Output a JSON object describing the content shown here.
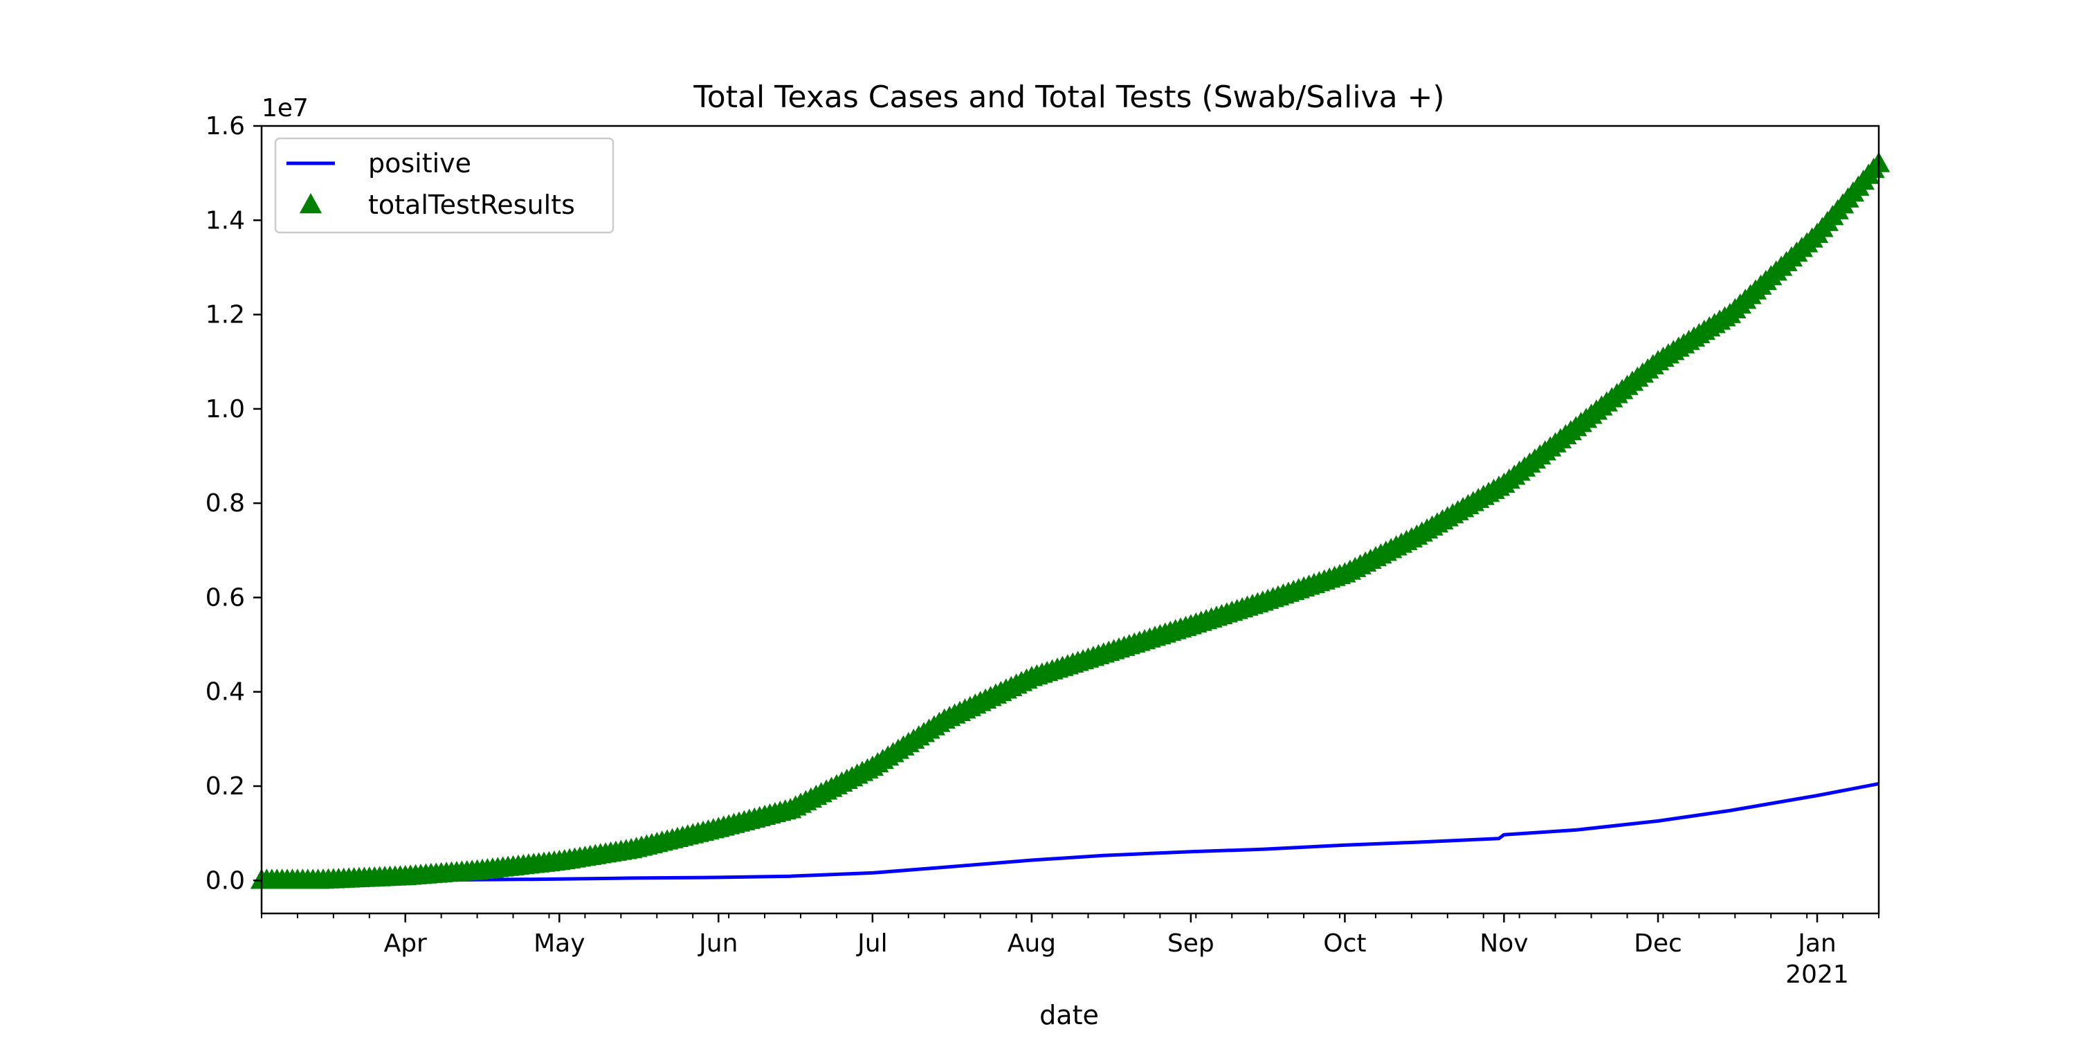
{
  "chart_data": {
    "type": "line",
    "title": "Total Texas Cases and Total Tests (Swab/Saliva +)",
    "xlabel": "date",
    "ylabel": "",
    "y_offset_label": "1e7",
    "xlim": [
      "2020-03-04",
      "2021-01-13"
    ],
    "ylim": [
      -0.07,
      1.6
    ],
    "y_ticks": [
      {
        "value": 0.0,
        "label": "0.0"
      },
      {
        "value": 0.2,
        "label": "0.2"
      },
      {
        "value": 0.4,
        "label": "0.4"
      },
      {
        "value": 0.6,
        "label": "0.6"
      },
      {
        "value": 0.8,
        "label": "0.8"
      },
      {
        "value": 1.0,
        "label": "1.0"
      },
      {
        "value": 1.2,
        "label": "1.2"
      },
      {
        "value": 1.4,
        "label": "1.4"
      },
      {
        "value": 1.6,
        "label": "1.6"
      }
    ],
    "x_ticks": [
      {
        "date": "2020-04-01",
        "label": "Apr"
      },
      {
        "date": "2020-05-01",
        "label": "May"
      },
      {
        "date": "2020-06-01",
        "label": "Jun"
      },
      {
        "date": "2020-07-01",
        "label": "Jul"
      },
      {
        "date": "2020-08-01",
        "label": "Aug"
      },
      {
        "date": "2020-09-01",
        "label": "Sep"
      },
      {
        "date": "2020-10-01",
        "label": "Oct"
      },
      {
        "date": "2020-11-01",
        "label": "Nov"
      },
      {
        "date": "2020-12-01",
        "label": "Dec"
      },
      {
        "date": "2021-01-01",
        "label": "Jan",
        "sublabel": "2021"
      }
    ],
    "grid": false,
    "legend_position": "top-left",
    "series": [
      {
        "name": "positive",
        "style": "line",
        "color": "#0000ff",
        "points": [
          [
            "2020-03-04",
            0.0
          ],
          [
            "2020-03-15",
            0.0001
          ],
          [
            "2020-04-01",
            0.0004
          ],
          [
            "2020-04-15",
            0.0015
          ],
          [
            "2020-05-01",
            0.003
          ],
          [
            "2020-05-15",
            0.005
          ],
          [
            "2020-06-01",
            0.0065
          ],
          [
            "2020-06-15",
            0.009
          ],
          [
            "2020-07-01",
            0.016
          ],
          [
            "2020-07-15",
            0.028
          ],
          [
            "2020-08-01",
            0.043
          ],
          [
            "2020-08-15",
            0.053
          ],
          [
            "2020-09-01",
            0.061
          ],
          [
            "2020-09-15",
            0.066
          ],
          [
            "2020-10-01",
            0.075
          ],
          [
            "2020-10-15",
            0.081
          ],
          [
            "2020-10-31",
            0.089
          ],
          [
            "2020-11-01",
            0.097
          ],
          [
            "2020-11-15",
            0.107
          ],
          [
            "2020-12-01",
            0.126
          ],
          [
            "2020-12-15",
            0.148
          ],
          [
            "2021-01-01",
            0.18
          ],
          [
            "2021-01-13",
            0.205
          ]
        ]
      },
      {
        "name": "totalTestResults",
        "style": "marker-triangle",
        "color": "#008000",
        "points": [
          [
            "2020-03-04",
            0.0
          ],
          [
            "2020-03-15",
            0.0
          ],
          [
            "2020-04-01",
            0.008
          ],
          [
            "2020-04-15",
            0.02
          ],
          [
            "2020-05-01",
            0.04
          ],
          [
            "2020-05-15",
            0.065
          ],
          [
            "2020-06-01",
            0.11
          ],
          [
            "2020-06-15",
            0.15
          ],
          [
            "2020-07-01",
            0.24
          ],
          [
            "2020-07-15",
            0.34
          ],
          [
            "2020-08-01",
            0.43
          ],
          [
            "2020-08-15",
            0.48
          ],
          [
            "2020-09-01",
            0.54
          ],
          [
            "2020-09-15",
            0.59
          ],
          [
            "2020-10-01",
            0.65
          ],
          [
            "2020-10-15",
            0.73
          ],
          [
            "2020-11-01",
            0.84
          ],
          [
            "2020-11-15",
            0.96
          ],
          [
            "2020-12-01",
            1.1
          ],
          [
            "2020-12-15",
            1.2
          ],
          [
            "2021-01-01",
            1.37
          ],
          [
            "2021-01-13",
            1.52
          ]
        ]
      }
    ]
  }
}
